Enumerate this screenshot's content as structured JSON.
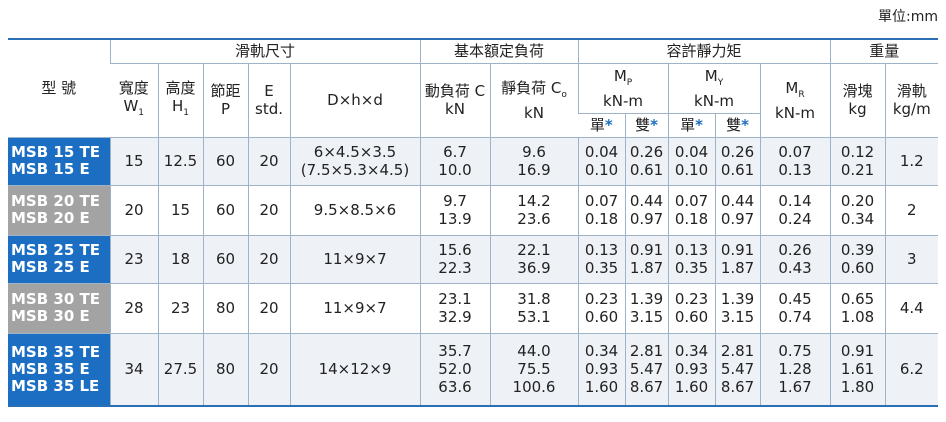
{
  "unit": "單位:mm",
  "header": {
    "model": "型 號",
    "groups": [
      "滑軌尺寸",
      "基本額定負荷",
      "容許靜力矩",
      "重量"
    ],
    "width": [
      "寬度",
      "W",
      "1"
    ],
    "height": [
      "高度",
      "H",
      "1"
    ],
    "pitch": [
      "節距",
      "P"
    ],
    "e": [
      "E",
      "std."
    ],
    "dhd": "D×h×d",
    "dynamic": [
      "動負荷 C",
      "kN"
    ],
    "static": [
      "靜負荷 C",
      "o",
      "kN"
    ],
    "mp": [
      "M",
      "P",
      "kN-m"
    ],
    "my": [
      "M",
      "Y",
      "kN-m"
    ],
    "mr": [
      "M",
      "R",
      "kN-m"
    ],
    "block": [
      "滑塊",
      "kg"
    ],
    "rail": [
      "滑軌",
      "kg/m"
    ],
    "single": "單",
    "double": "雙",
    "star": "*"
  },
  "rows": [
    {
      "models": [
        "MSB 15 TE",
        "MSB 15 E"
      ],
      "color": "#1b6ec2",
      "cells": [
        [
          "15"
        ],
        [
          "12.5"
        ],
        [
          "60"
        ],
        [
          "20"
        ],
        [
          "6×4.5×3.5",
          "(7.5×5.3×4.5)"
        ],
        [
          "6.7",
          "10.0"
        ],
        [
          "9.6",
          "16.9"
        ],
        [
          "0.04",
          "0.10"
        ],
        [
          "0.26",
          "0.61"
        ],
        [
          "0.04",
          "0.10"
        ],
        [
          "0.26",
          "0.61"
        ],
        [
          "0.07",
          "0.13"
        ],
        [
          "0.12",
          "0.21"
        ],
        [
          "1.2"
        ]
      ]
    },
    {
      "models": [
        "MSB 20 TE",
        "MSB 20 E"
      ],
      "color": "#a3a3a3",
      "cells": [
        [
          "20"
        ],
        [
          "15"
        ],
        [
          "60"
        ],
        [
          "20"
        ],
        [
          "9.5×8.5×6"
        ],
        [
          "9.7",
          "13.9"
        ],
        [
          "14.2",
          "23.6"
        ],
        [
          "0.07",
          "0.18"
        ],
        [
          "0.44",
          "0.97"
        ],
        [
          "0.07",
          "0.18"
        ],
        [
          "0.44",
          "0.97"
        ],
        [
          "0.14",
          "0.24"
        ],
        [
          "0.20",
          "0.34"
        ],
        [
          "2"
        ]
      ]
    },
    {
      "models": [
        "MSB 25 TE",
        "MSB 25 E"
      ],
      "color": "#1b6ec2",
      "cells": [
        [
          "23"
        ],
        [
          "18"
        ],
        [
          "60"
        ],
        [
          "20"
        ],
        [
          "11×9×7"
        ],
        [
          "15.6",
          "22.3"
        ],
        [
          "22.1",
          "36.9"
        ],
        [
          "0.13",
          "0.35"
        ],
        [
          "0.91",
          "1.87"
        ],
        [
          "0.13",
          "0.35"
        ],
        [
          "0.91",
          "1.87"
        ],
        [
          "0.26",
          "0.43"
        ],
        [
          "0.39",
          "0.60"
        ],
        [
          "3"
        ]
      ]
    },
    {
      "models": [
        "MSB 30 TE",
        "MSB 30 E"
      ],
      "color": "#a3a3a3",
      "cells": [
        [
          "28"
        ],
        [
          "23"
        ],
        [
          "80"
        ],
        [
          "20"
        ],
        [
          "11×9×7"
        ],
        [
          "23.1",
          "32.9"
        ],
        [
          "31.8",
          "53.1"
        ],
        [
          "0.23",
          "0.60"
        ],
        [
          "1.39",
          "3.15"
        ],
        [
          "0.23",
          "0.60"
        ],
        [
          "1.39",
          "3.15"
        ],
        [
          "0.45",
          "0.74"
        ],
        [
          "0.65",
          "1.08"
        ],
        [
          "4.4"
        ]
      ]
    },
    {
      "models": [
        "MSB 35 TE",
        "MSB 35 E",
        "MSB 35 LE"
      ],
      "color": "#1b6ec2",
      "cells": [
        [
          "34"
        ],
        [
          "27.5"
        ],
        [
          "80"
        ],
        [
          "20"
        ],
        [
          "14×12×9"
        ],
        [
          "35.7",
          "52.0",
          "63.6"
        ],
        [
          "44.0",
          "75.5",
          "100.6"
        ],
        [
          "0.34",
          "0.93",
          "1.60"
        ],
        [
          "2.81",
          "5.47",
          "8.67"
        ],
        [
          "0.34",
          "0.93",
          "1.60"
        ],
        [
          "2.81",
          "5.47",
          "8.67"
        ],
        [
          "0.75",
          "1.28",
          "1.67"
        ],
        [
          "0.91",
          "1.61",
          "1.80"
        ],
        [
          "6.2"
        ]
      ]
    }
  ]
}
